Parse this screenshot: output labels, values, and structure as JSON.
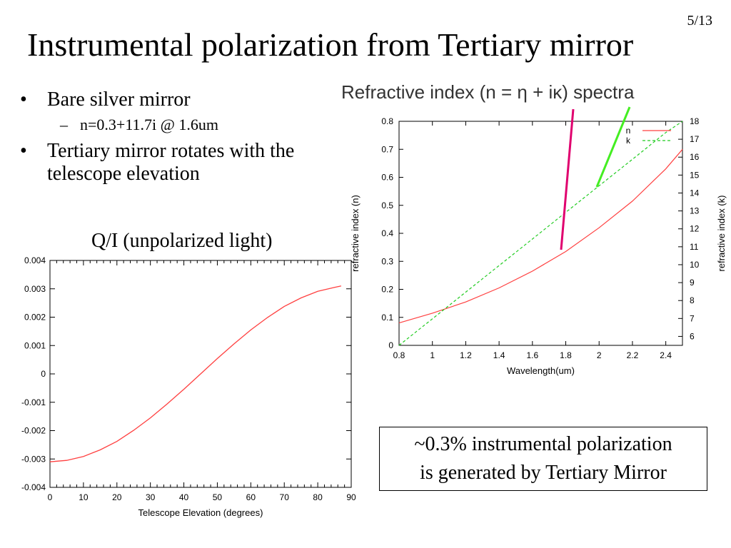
{
  "slide": {
    "page_number": "5/13",
    "title": "Instrumental polarization from Tertiary mirror",
    "bullets": {
      "b1": "Bare silver mirror",
      "b1_sub": "n=0.3+11.7i @ 1.6um",
      "b2": "Tertiary mirror rotates with the telescope elevation"
    },
    "qi_caption": "Q/I (unpolarized light)",
    "callout": {
      "line1": "~0.3% instrumental polarization",
      "line2": "is generated by Tertiary Mirror"
    },
    "colors": {
      "n_curve": "#ff4040",
      "k_curve": "#22cc22",
      "qi_curve": "#ff4040",
      "magenta_marker": "#e0006e",
      "green_marker": "#44ee22"
    }
  },
  "chart_data": [
    {
      "type": "line",
      "xlabel": "Telescope Elevation (degrees)",
      "ylabel": "",
      "xlim": [
        0,
        90
      ],
      "ylim": [
        -0.004,
        0.004
      ],
      "x_ticks": [
        "0",
        "10",
        "20",
        "30",
        "40",
        "50",
        "60",
        "70",
        "80",
        "90"
      ],
      "y_ticks": [
        "-0.004",
        "-0.003",
        "-0.002",
        "-0.001",
        "0",
        "0.001",
        "0.002",
        "0.003",
        "0.004"
      ],
      "grid": false,
      "series": [
        {
          "name": "",
          "x": [
            0,
            5,
            10,
            15,
            20,
            25,
            30,
            35,
            40,
            45,
            50,
            55,
            60,
            65,
            70,
            75,
            80,
            85,
            87
          ],
          "y": [
            -0.0031,
            -0.00305,
            -0.00291,
            -0.00268,
            -0.00238,
            -0.00199,
            -0.00155,
            -0.00106,
            -0.00054,
            0,
            0.00054,
            0.00106,
            0.00155,
            0.00199,
            0.00238,
            0.00268,
            0.00291,
            0.00305,
            0.0031
          ]
        }
      ]
    },
    {
      "type": "line",
      "title": "Refractive index (n = η + iκ) spectra",
      "xlabel": "Wavelength(um)",
      "ylabel": "refractive index (n)",
      "y2label": "refractive index (k)",
      "xlim": [
        0.8,
        2.5
      ],
      "ylim": [
        0,
        0.8
      ],
      "y2lim": [
        5.5,
        18
      ],
      "x_ticks": [
        "0.8",
        "1",
        "1.2",
        "1.4",
        "1.6",
        "1.8",
        "2",
        "2.2",
        "2.4"
      ],
      "y_ticks": [
        "0",
        "0.1",
        "0.2",
        "0.3",
        "0.4",
        "0.5",
        "0.6",
        "0.7",
        "0.8"
      ],
      "y2_ticks": [
        "6",
        "7",
        "8",
        "9",
        "10",
        "11",
        "12",
        "13",
        "14",
        "15",
        "16",
        "17",
        "18"
      ],
      "legend": "top-right",
      "grid": false,
      "series": [
        {
          "name": "n",
          "axis": "left",
          "x": [
            0.8,
            1.0,
            1.2,
            1.4,
            1.6,
            1.8,
            2.0,
            2.2,
            2.4,
            2.5
          ],
          "y": [
            0.08,
            0.115,
            0.155,
            0.205,
            0.265,
            0.335,
            0.42,
            0.515,
            0.63,
            0.7
          ]
        },
        {
          "name": "k",
          "axis": "right",
          "x": [
            0.8,
            1.0,
            1.2,
            1.4,
            1.6,
            1.8,
            2.0,
            2.2,
            2.4,
            2.5
          ],
          "y": [
            5.5,
            6.98,
            8.47,
            9.95,
            11.43,
            12.92,
            14.4,
            15.88,
            17.37,
            18.1
          ]
        }
      ]
    }
  ]
}
